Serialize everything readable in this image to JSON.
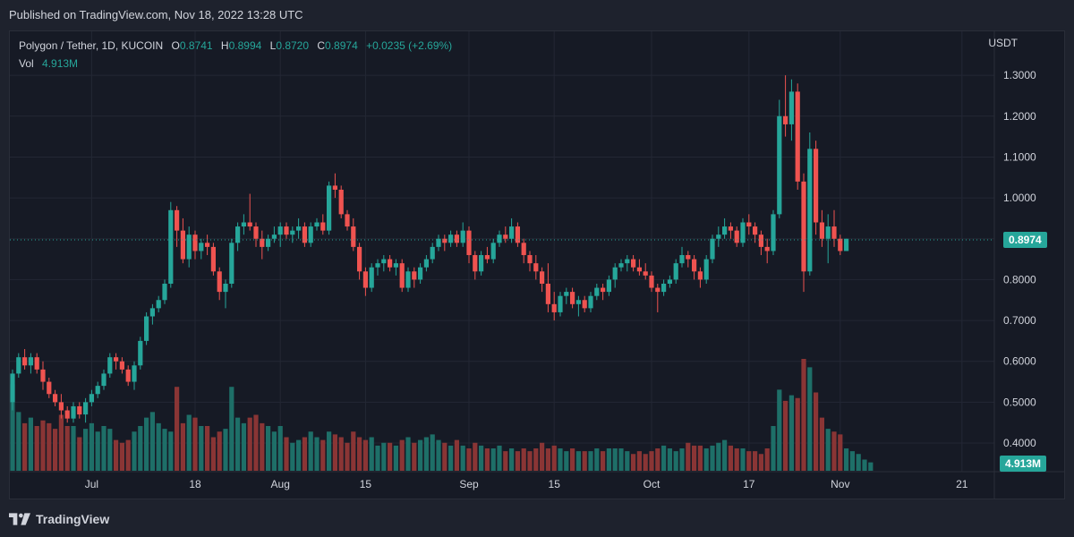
{
  "header": {
    "published": "Published on TradingView.com, Nov 18, 2022 13:28 UTC"
  },
  "legend": {
    "symbol": "Polygon / Tether, 1D, KUCOIN",
    "open_label": "O",
    "open": "0.8741",
    "high_label": "H",
    "high": "0.8994",
    "low_label": "L",
    "low": "0.8720",
    "close_label": "C",
    "close": "0.8974",
    "change": "+0.0235 (+2.69%)",
    "vol_label": "Vol",
    "vol": "4.913M"
  },
  "colors": {
    "up": "#26a69a",
    "down": "#ef5350",
    "up_vol": "#1e6f68",
    "down_vol": "#8a3535",
    "background": "#161a25",
    "grid": "#232734",
    "text": "#d1d4dc"
  },
  "footer": {
    "brand": "TradingView",
    "logo_icon": "tradingview-logo-icon"
  },
  "chart_data": {
    "type": "candlestick",
    "symbol": "Polygon / Tether",
    "interval": "1D",
    "exchange": "KUCOIN",
    "currency": "USDT",
    "last_price": "0.8974",
    "last_volume": "4.913M",
    "ylim": [
      0.33,
      1.32
    ],
    "y_ticks": [
      "1.3000",
      "1.2000",
      "1.1000",
      "1.0000",
      "0.9000",
      "0.8000",
      "0.7000",
      "0.6000",
      "0.5000",
      "0.4000"
    ],
    "x_ticks": [
      {
        "label": "Jul",
        "index": 13
      },
      {
        "label": "18",
        "index": 30
      },
      {
        "label": "Aug",
        "index": 44
      },
      {
        "label": "15",
        "index": 58
      },
      {
        "label": "Sep",
        "index": 75
      },
      {
        "label": "15",
        "index": 89
      },
      {
        "label": "Oct",
        "index": 105
      },
      {
        "label": "17",
        "index": 121
      },
      {
        "label": "Nov",
        "index": 136
      },
      {
        "label": "21",
        "index": 156
      }
    ],
    "start_date": "2022-06-18",
    "ohlc": [
      [
        0.5,
        0.58,
        0.48,
        0.57
      ],
      [
        0.57,
        0.62,
        0.56,
        0.61
      ],
      [
        0.61,
        0.63,
        0.58,
        0.59
      ],
      [
        0.59,
        0.62,
        0.57,
        0.61
      ],
      [
        0.61,
        0.62,
        0.57,
        0.58
      ],
      [
        0.58,
        0.6,
        0.53,
        0.55
      ],
      [
        0.55,
        0.56,
        0.51,
        0.52
      ],
      [
        0.52,
        0.53,
        0.49,
        0.5
      ],
      [
        0.5,
        0.52,
        0.46,
        0.48
      ],
      [
        0.48,
        0.49,
        0.45,
        0.46
      ],
      [
        0.46,
        0.5,
        0.45,
        0.49
      ],
      [
        0.49,
        0.5,
        0.46,
        0.47
      ],
      [
        0.47,
        0.51,
        0.45,
        0.5
      ],
      [
        0.5,
        0.53,
        0.49,
        0.52
      ],
      [
        0.52,
        0.55,
        0.51,
        0.54
      ],
      [
        0.54,
        0.58,
        0.53,
        0.57
      ],
      [
        0.57,
        0.62,
        0.56,
        0.61
      ],
      [
        0.61,
        0.62,
        0.58,
        0.6
      ],
      [
        0.6,
        0.61,
        0.57,
        0.58
      ],
      [
        0.58,
        0.59,
        0.54,
        0.55
      ],
      [
        0.55,
        0.6,
        0.53,
        0.59
      ],
      [
        0.59,
        0.66,
        0.58,
        0.65
      ],
      [
        0.65,
        0.72,
        0.64,
        0.71
      ],
      [
        0.71,
        0.74,
        0.69,
        0.73
      ],
      [
        0.73,
        0.76,
        0.72,
        0.75
      ],
      [
        0.75,
        0.8,
        0.74,
        0.79
      ],
      [
        0.79,
        0.99,
        0.78,
        0.97
      ],
      [
        0.97,
        0.98,
        0.88,
        0.92
      ],
      [
        0.92,
        0.95,
        0.84,
        0.85
      ],
      [
        0.85,
        0.93,
        0.83,
        0.91
      ],
      [
        0.91,
        0.92,
        0.85,
        0.87
      ],
      [
        0.87,
        0.9,
        0.85,
        0.89
      ],
      [
        0.89,
        0.91,
        0.86,
        0.88
      ],
      [
        0.88,
        0.89,
        0.81,
        0.82
      ],
      [
        0.82,
        0.83,
        0.75,
        0.77
      ],
      [
        0.77,
        0.8,
        0.73,
        0.79
      ],
      [
        0.79,
        0.9,
        0.78,
        0.89
      ],
      [
        0.89,
        0.94,
        0.87,
        0.93
      ],
      [
        0.93,
        0.96,
        0.91,
        0.94
      ],
      [
        0.94,
        1.01,
        0.92,
        0.93
      ],
      [
        0.93,
        0.94,
        0.88,
        0.9
      ],
      [
        0.9,
        0.92,
        0.85,
        0.88
      ],
      [
        0.88,
        0.91,
        0.87,
        0.9
      ],
      [
        0.9,
        0.93,
        0.89,
        0.91
      ],
      [
        0.91,
        0.94,
        0.88,
        0.93
      ],
      [
        0.93,
        0.94,
        0.9,
        0.91
      ],
      [
        0.91,
        0.93,
        0.89,
        0.92
      ],
      [
        0.92,
        0.95,
        0.9,
        0.93
      ],
      [
        0.93,
        0.94,
        0.88,
        0.89
      ],
      [
        0.89,
        0.94,
        0.88,
        0.93
      ],
      [
        0.93,
        0.95,
        0.92,
        0.94
      ],
      [
        0.94,
        0.96,
        0.91,
        0.92
      ],
      [
        0.92,
        1.04,
        0.91,
        1.03
      ],
      [
        1.03,
        1.06,
        1.0,
        1.02
      ],
      [
        1.02,
        1.03,
        0.95,
        0.96
      ],
      [
        0.96,
        0.97,
        0.92,
        0.93
      ],
      [
        0.93,
        0.95,
        0.87,
        0.88
      ],
      [
        0.88,
        0.89,
        0.8,
        0.82
      ],
      [
        0.82,
        0.83,
        0.76,
        0.78
      ],
      [
        0.78,
        0.84,
        0.77,
        0.83
      ],
      [
        0.83,
        0.85,
        0.81,
        0.84
      ],
      [
        0.84,
        0.86,
        0.82,
        0.85
      ],
      [
        0.85,
        0.86,
        0.82,
        0.83
      ],
      [
        0.83,
        0.85,
        0.81,
        0.84
      ],
      [
        0.84,
        0.85,
        0.77,
        0.78
      ],
      [
        0.78,
        0.83,
        0.77,
        0.82
      ],
      [
        0.82,
        0.83,
        0.78,
        0.8
      ],
      [
        0.8,
        0.84,
        0.79,
        0.83
      ],
      [
        0.83,
        0.86,
        0.82,
        0.85
      ],
      [
        0.85,
        0.89,
        0.84,
        0.88
      ],
      [
        0.88,
        0.91,
        0.87,
        0.9
      ],
      [
        0.9,
        0.91,
        0.87,
        0.89
      ],
      [
        0.89,
        0.92,
        0.88,
        0.91
      ],
      [
        0.91,
        0.92,
        0.88,
        0.89
      ],
      [
        0.89,
        0.94,
        0.88,
        0.92
      ],
      [
        0.92,
        0.93,
        0.84,
        0.86
      ],
      [
        0.86,
        0.87,
        0.8,
        0.82
      ],
      [
        0.82,
        0.87,
        0.81,
        0.86
      ],
      [
        0.86,
        0.88,
        0.84,
        0.85
      ],
      [
        0.85,
        0.9,
        0.84,
        0.89
      ],
      [
        0.89,
        0.92,
        0.88,
        0.91
      ],
      [
        0.91,
        0.93,
        0.89,
        0.9
      ],
      [
        0.9,
        0.95,
        0.89,
        0.93
      ],
      [
        0.93,
        0.94,
        0.88,
        0.89
      ],
      [
        0.89,
        0.9,
        0.84,
        0.86
      ],
      [
        0.86,
        0.87,
        0.82,
        0.84
      ],
      [
        0.84,
        0.86,
        0.8,
        0.82
      ],
      [
        0.82,
        0.83,
        0.77,
        0.79
      ],
      [
        0.79,
        0.84,
        0.72,
        0.74
      ],
      [
        0.74,
        0.77,
        0.7,
        0.72
      ],
      [
        0.72,
        0.77,
        0.71,
        0.76
      ],
      [
        0.76,
        0.78,
        0.74,
        0.77
      ],
      [
        0.77,
        0.78,
        0.73,
        0.74
      ],
      [
        0.74,
        0.76,
        0.71,
        0.75
      ],
      [
        0.75,
        0.76,
        0.72,
        0.73
      ],
      [
        0.73,
        0.77,
        0.72,
        0.76
      ],
      [
        0.76,
        0.79,
        0.75,
        0.78
      ],
      [
        0.78,
        0.79,
        0.75,
        0.77
      ],
      [
        0.77,
        0.81,
        0.76,
        0.8
      ],
      [
        0.8,
        0.84,
        0.78,
        0.83
      ],
      [
        0.83,
        0.85,
        0.82,
        0.84
      ],
      [
        0.84,
        0.86,
        0.82,
        0.85
      ],
      [
        0.85,
        0.86,
        0.82,
        0.83
      ],
      [
        0.83,
        0.85,
        0.81,
        0.82
      ],
      [
        0.82,
        0.84,
        0.8,
        0.81
      ],
      [
        0.81,
        0.82,
        0.77,
        0.78
      ],
      [
        0.78,
        0.79,
        0.72,
        0.77
      ],
      [
        0.77,
        0.8,
        0.76,
        0.79
      ],
      [
        0.79,
        0.81,
        0.78,
        0.8
      ],
      [
        0.8,
        0.85,
        0.79,
        0.84
      ],
      [
        0.84,
        0.88,
        0.83,
        0.86
      ],
      [
        0.86,
        0.87,
        0.83,
        0.85
      ],
      [
        0.85,
        0.86,
        0.8,
        0.82
      ],
      [
        0.82,
        0.83,
        0.78,
        0.8
      ],
      [
        0.8,
        0.86,
        0.79,
        0.85
      ],
      [
        0.85,
        0.91,
        0.84,
        0.9
      ],
      [
        0.9,
        0.93,
        0.88,
        0.91
      ],
      [
        0.91,
        0.95,
        0.9,
        0.93
      ],
      [
        0.93,
        0.94,
        0.9,
        0.92
      ],
      [
        0.92,
        0.93,
        0.88,
        0.89
      ],
      [
        0.89,
        0.95,
        0.88,
        0.94
      ],
      [
        0.94,
        0.96,
        0.91,
        0.93
      ],
      [
        0.93,
        0.94,
        0.89,
        0.91
      ],
      [
        0.91,
        0.92,
        0.86,
        0.88
      ],
      [
        0.88,
        0.9,
        0.84,
        0.87
      ],
      [
        0.87,
        0.97,
        0.86,
        0.96
      ],
      [
        0.96,
        1.24,
        0.95,
        1.2
      ],
      [
        1.2,
        1.3,
        1.15,
        1.18
      ],
      [
        1.18,
        1.29,
        1.14,
        1.26
      ],
      [
        1.26,
        1.28,
        1.02,
        1.04
      ],
      [
        1.04,
        1.06,
        0.77,
        0.82
      ],
      [
        0.82,
        1.16,
        0.81,
        1.12
      ],
      [
        1.12,
        1.14,
        0.91,
        0.94
      ],
      [
        0.94,
        0.97,
        0.88,
        0.9
      ],
      [
        0.9,
        0.96,
        0.84,
        0.93
      ],
      [
        0.93,
        0.97,
        0.88,
        0.9
      ],
      [
        0.9,
        0.91,
        0.86,
        0.87
      ],
      [
        0.87,
        0.9,
        0.87,
        0.9
      ]
    ],
    "volume": [
      155,
      105,
      85,
      95,
      80,
      90,
      85,
      75,
      100,
      80,
      80,
      60,
      75,
      85,
      70,
      80,
      75,
      55,
      50,
      55,
      70,
      80,
      95,
      105,
      85,
      75,
      70,
      150,
      85,
      100,
      95,
      80,
      80,
      60,
      70,
      75,
      150,
      95,
      85,
      95,
      100,
      85,
      80,
      70,
      80,
      60,
      50,
      55,
      60,
      70,
      60,
      55,
      70,
      65,
      60,
      50,
      70,
      60,
      55,
      60,
      45,
      50,
      50,
      45,
      55,
      60,
      50,
      55,
      60,
      65,
      55,
      50,
      45,
      55,
      45,
      40,
      50,
      45,
      40,
      40,
      45,
      35,
      40,
      35,
      40,
      35,
      40,
      50,
      40,
      45,
      40,
      35,
      40,
      35,
      35,
      35,
      40,
      35,
      40,
      40,
      40,
      35,
      30,
      35,
      30,
      35,
      40,
      45,
      40,
      35,
      40,
      50,
      45,
      45,
      40,
      45,
      50,
      55,
      45,
      40,
      40,
      35,
      35,
      30,
      40,
      80,
      145,
      125,
      135,
      130,
      200,
      185,
      140,
      95,
      75,
      70,
      65,
      40,
      35,
      30,
      20,
      15
    ]
  }
}
